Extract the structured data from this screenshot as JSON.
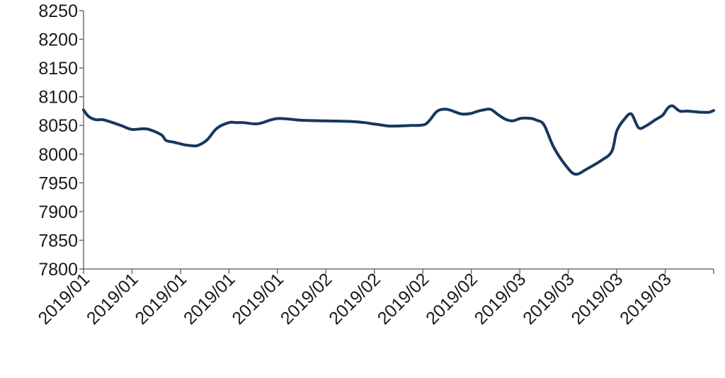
{
  "chart_data": {
    "type": "line",
    "title": "",
    "xlabel": "",
    "ylabel": "",
    "ylim": [
      7800,
      8250
    ],
    "y_ticks": [
      7800,
      7850,
      7900,
      7950,
      8000,
      8050,
      8100,
      8150,
      8200,
      8250
    ],
    "x_tick_labels": [
      "2019/01",
      "2019/01",
      "2019/01",
      "2019/01",
      "2019/01",
      "2019/02",
      "2019/02",
      "2019/02",
      "2019/02",
      "2019/03",
      "2019/03",
      "2019/03",
      "2019/03"
    ],
    "grid": false,
    "legend": "none",
    "colors": {
      "series": "#17375e",
      "axis": "#6e6e6e",
      "text": "#1a1a1a"
    },
    "series": [
      {
        "x": [
          0,
          0.1,
          0.25,
          0.4,
          0.6,
          0.8,
          1.0,
          1.3,
          1.6,
          1.7,
          1.85,
          2.0,
          2.1,
          2.2,
          2.35,
          2.55,
          2.75,
          3.0,
          3.15,
          3.3,
          3.6,
          4.0,
          4.5,
          5.0,
          5.5,
          5.8,
          5.95,
          6.05,
          6.2,
          6.3,
          6.45,
          6.75,
          6.9,
          7.05,
          7.15,
          7.3,
          7.5,
          7.8,
          8.0,
          8.1,
          8.25,
          8.4,
          8.55,
          8.7,
          8.85,
          9.0,
          9.1,
          9.25,
          9.35,
          9.5,
          9.7,
          9.95,
          10.15,
          10.4,
          10.7,
          10.9,
          11.0,
          11.15,
          11.3,
          11.45,
          11.6,
          11.8,
          11.95,
          12.05,
          12.15,
          12.3,
          12.45,
          12.6,
          12.75,
          12.9,
          13.0
        ],
        "y": [
          8077,
          8066,
          8060,
          8060,
          8055,
          8049,
          8043,
          8044,
          8034,
          8024,
          8021,
          8018,
          8016,
          8015,
          8015,
          8025,
          8045,
          8055,
          8055,
          8055,
          8053,
          8062,
          8059,
          8058,
          8057,
          8055,
          8053,
          8052,
          8050,
          8049,
          8049,
          8050,
          8050,
          8052,
          8060,
          8075,
          8078,
          8070,
          8071,
          8074,
          8077,
          8078,
          8069,
          8061,
          8058,
          8062,
          8063,
          8062,
          8059,
          8051,
          8012,
          7980,
          7965,
          7975,
          7990,
          8005,
          8040,
          8060,
          8070,
          8046,
          8049,
          8060,
          8068,
          8080,
          8084,
          8075,
          8075,
          8074,
          8073,
          8073,
          8076
        ]
      }
    ]
  }
}
